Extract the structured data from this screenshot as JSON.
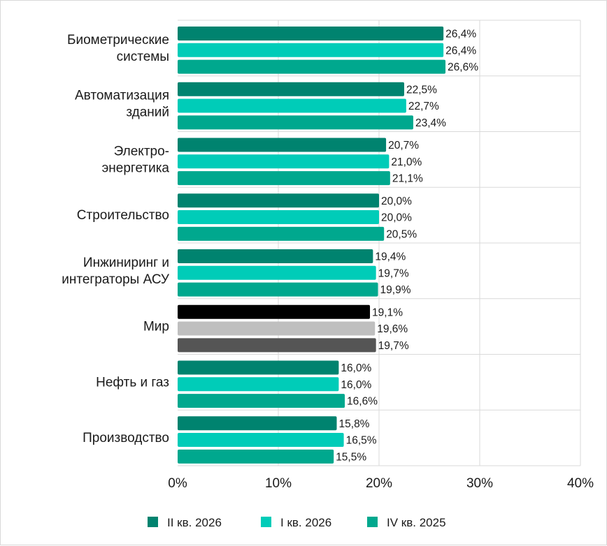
{
  "chart_data": {
    "type": "bar",
    "orientation": "horizontal",
    "categories": [
      [
        "Биометрические",
        "системы"
      ],
      [
        "Автоматизация",
        "зданий"
      ],
      [
        "Электро-",
        "энергетика"
      ],
      [
        "Строительство"
      ],
      [
        "Инжиниринг и",
        "интеграторы АСУ"
      ],
      [
        "Мир"
      ],
      [
        "Нефть и газ"
      ],
      [
        "Производство"
      ]
    ],
    "series": [
      {
        "name": "II кв. 2026",
        "values": [
          26.4,
          22.5,
          20.7,
          20.0,
          19.4,
          19.1,
          16.0,
          15.8
        ],
        "labels": [
          "26,4%",
          "22,5%",
          "20,7%",
          "20,0%",
          "19,4%",
          "19,1%",
          "16,0%",
          "15,8%"
        ]
      },
      {
        "name": "I кв. 2026",
        "values": [
          26.4,
          22.7,
          21.0,
          20.0,
          19.7,
          19.6,
          16.0,
          16.5
        ],
        "labels": [
          "26,4%",
          "22,7%",
          "21,0%",
          "20,0%",
          "19,7%",
          "19,6%",
          "16,0%",
          "16,5%"
        ]
      },
      {
        "name": "IV кв. 2025",
        "values": [
          26.6,
          23.4,
          21.1,
          20.5,
          19.9,
          19.7,
          16.6,
          15.5
        ],
        "labels": [
          "26,6%",
          "23,4%",
          "21,1%",
          "20,5%",
          "19,9%",
          "19,7%",
          "16,6%",
          "15,5%"
        ]
      }
    ],
    "series_colors": [
      "#00836f",
      "#00ccb8",
      "#00a88e"
    ],
    "highlight": {
      "category_index": 5,
      "colors": [
        "#000000",
        "#bfbfbf",
        "#555555"
      ]
    },
    "xlim": [
      0,
      40
    ],
    "xticks": [
      0,
      10,
      20,
      30,
      40
    ],
    "xtick_labels": [
      "0%",
      "10%",
      "20%",
      "30%",
      "40%"
    ],
    "grid": true,
    "legend_position": "bottom",
    "label_color": "#1a1a1a",
    "grid_color": "#d9d9d9"
  }
}
